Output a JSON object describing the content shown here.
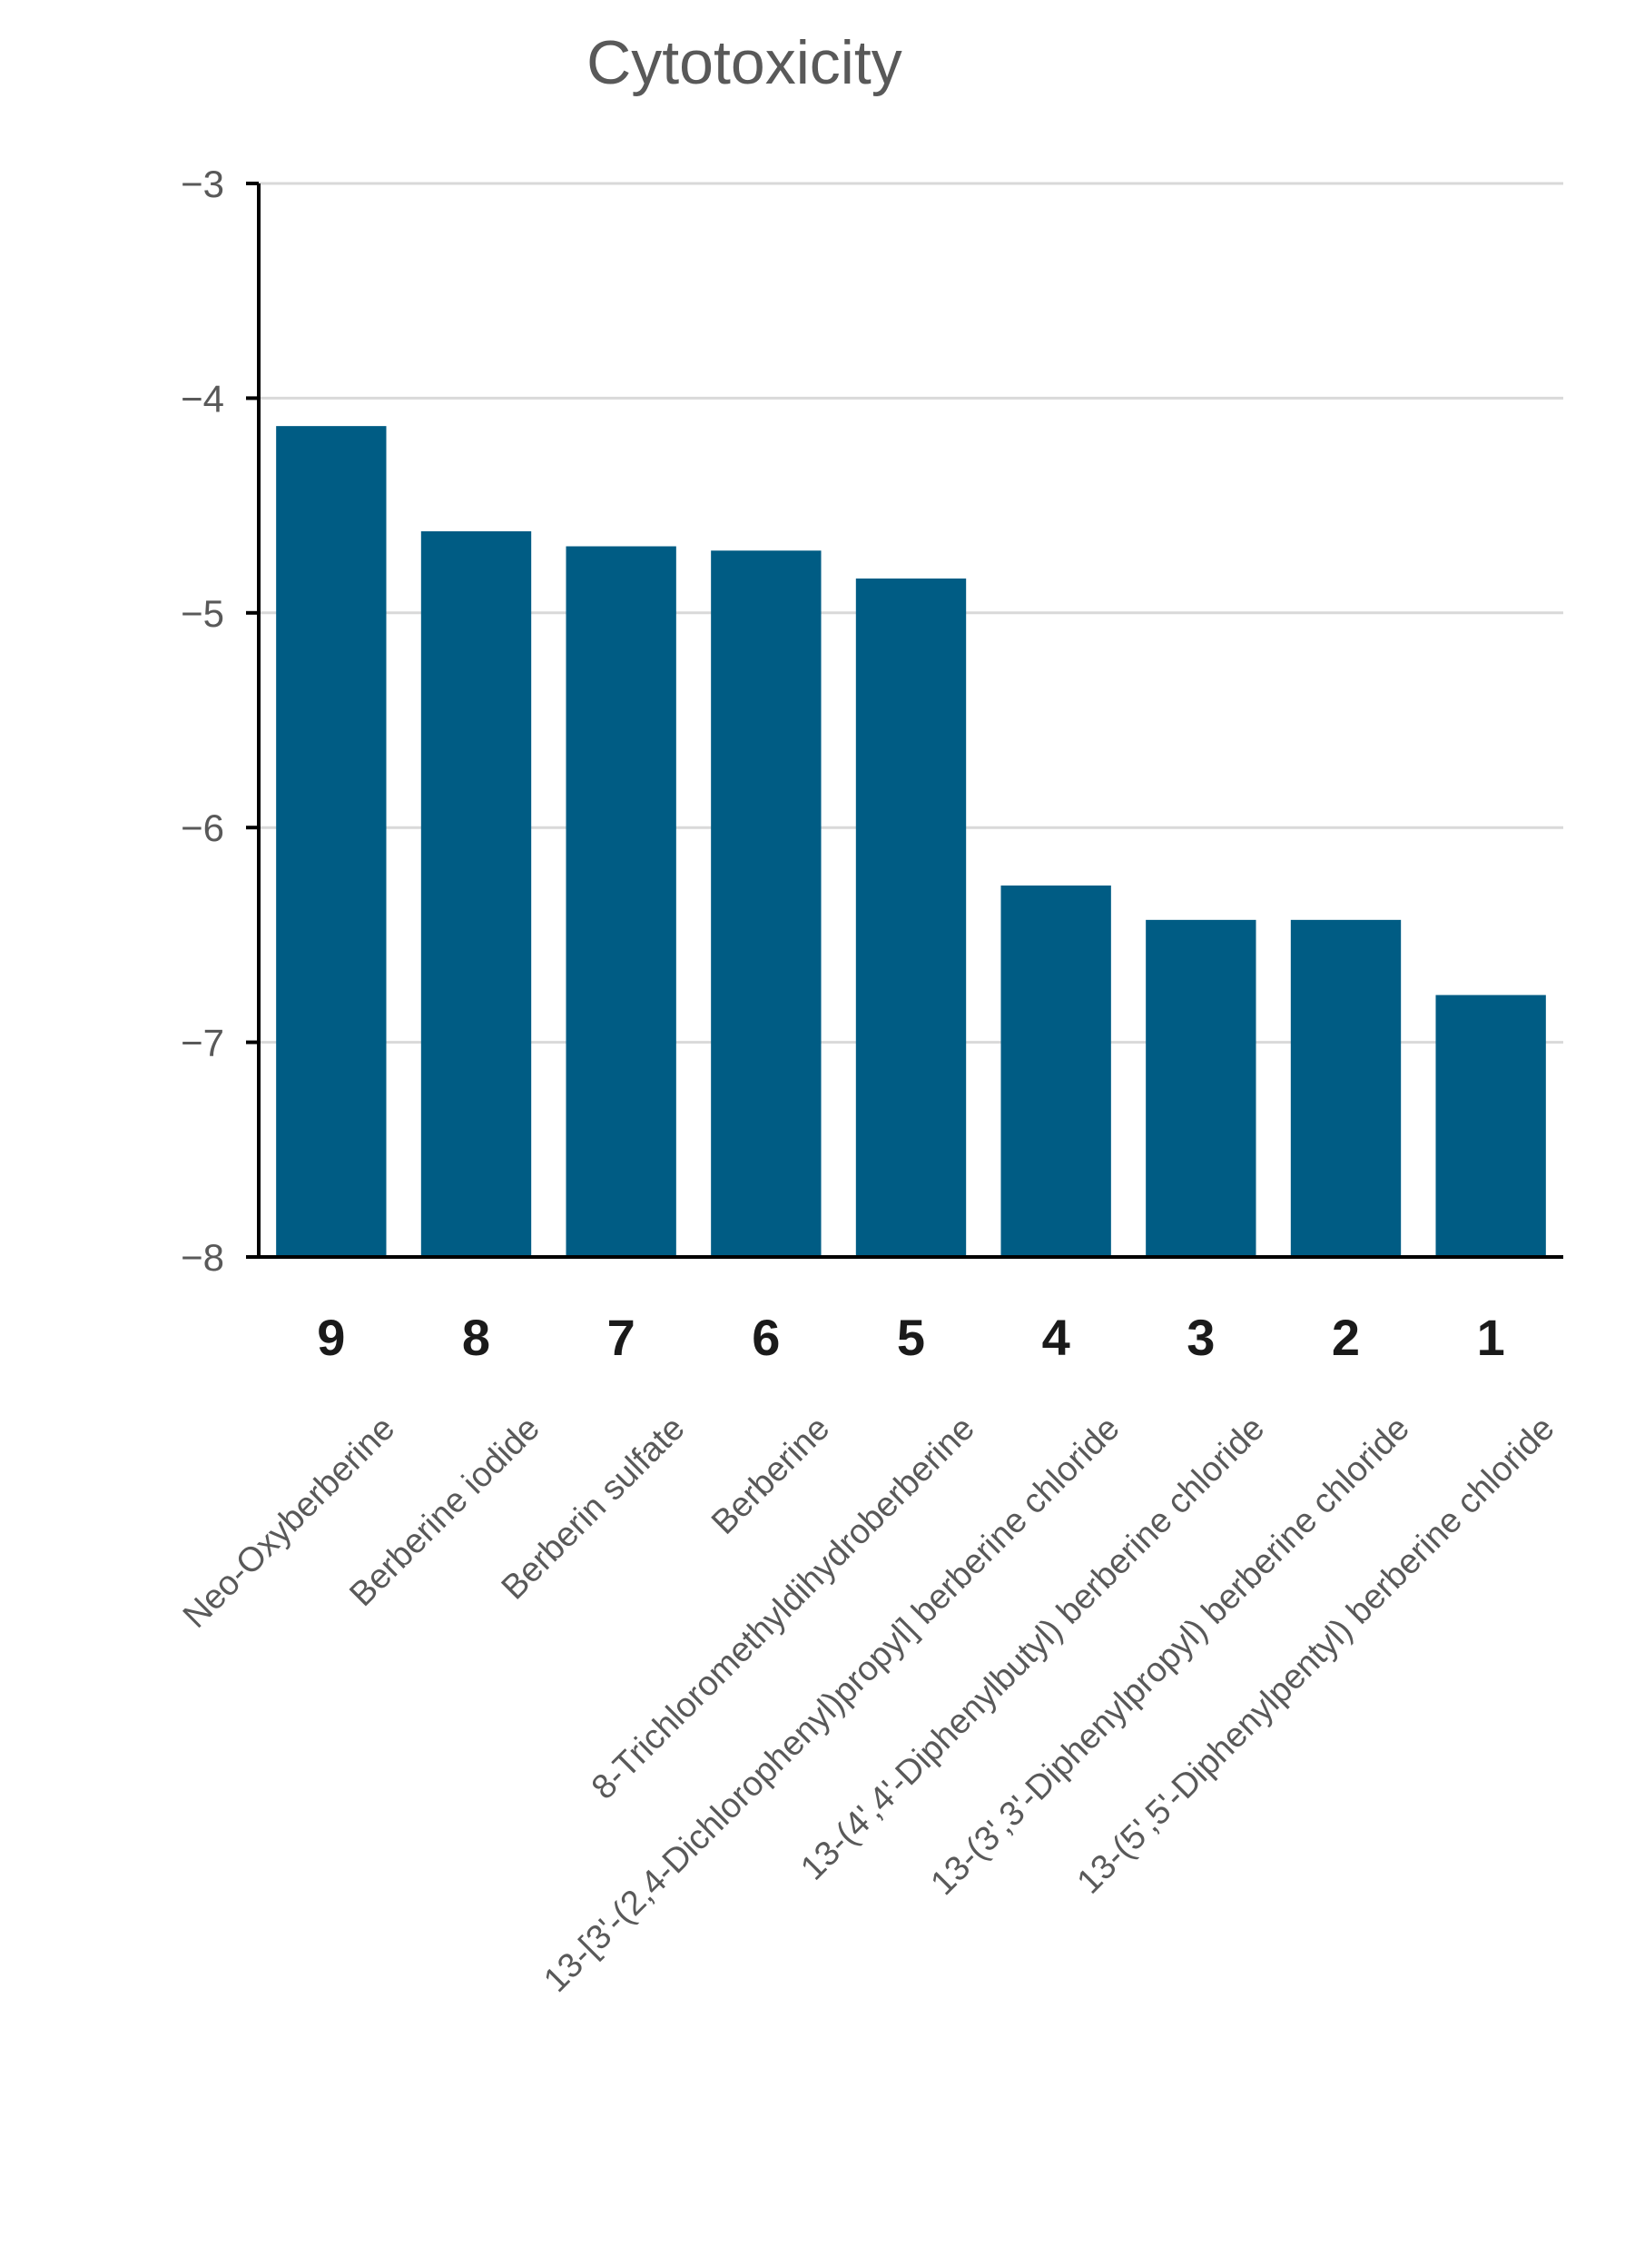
{
  "chart_data": {
    "type": "bar",
    "title": "Cytotoxicity",
    "xlabel": "",
    "ylabel": "",
    "ylim": [
      -8,
      -3
    ],
    "yticks": [
      "−3",
      "−4",
      "−5",
      "−6",
      "−7",
      "−8"
    ],
    "ytick_values": [
      -3,
      -4,
      -5,
      -6,
      -7,
      -8
    ],
    "grid": true,
    "bar_baseline": -8,
    "bar_color": "#005C84",
    "categories": [
      "Neo-Oxyberberine",
      "Berberine iodide",
      "Berberin sulfate",
      "Berberine",
      "8-Trichloromethyldihydroberberine",
      "13-[3'-(2,4-Dichlorophenyl)propyl] berberine chloride",
      "13-(4',4'-Diphenylbutyl) berberine chloride",
      "13-(3',3'-Diphenylpropyl) berberine chloride",
      "13-(5',5'-Diphenylpentyl) berberine chloride"
    ],
    "numbers": [
      "9",
      "8",
      "7",
      "6",
      "5",
      "4",
      "3",
      "2",
      "1"
    ],
    "values": [
      -4.13,
      -4.62,
      -4.69,
      -4.71,
      -4.84,
      -6.27,
      -6.43,
      -6.43,
      -6.78
    ]
  }
}
